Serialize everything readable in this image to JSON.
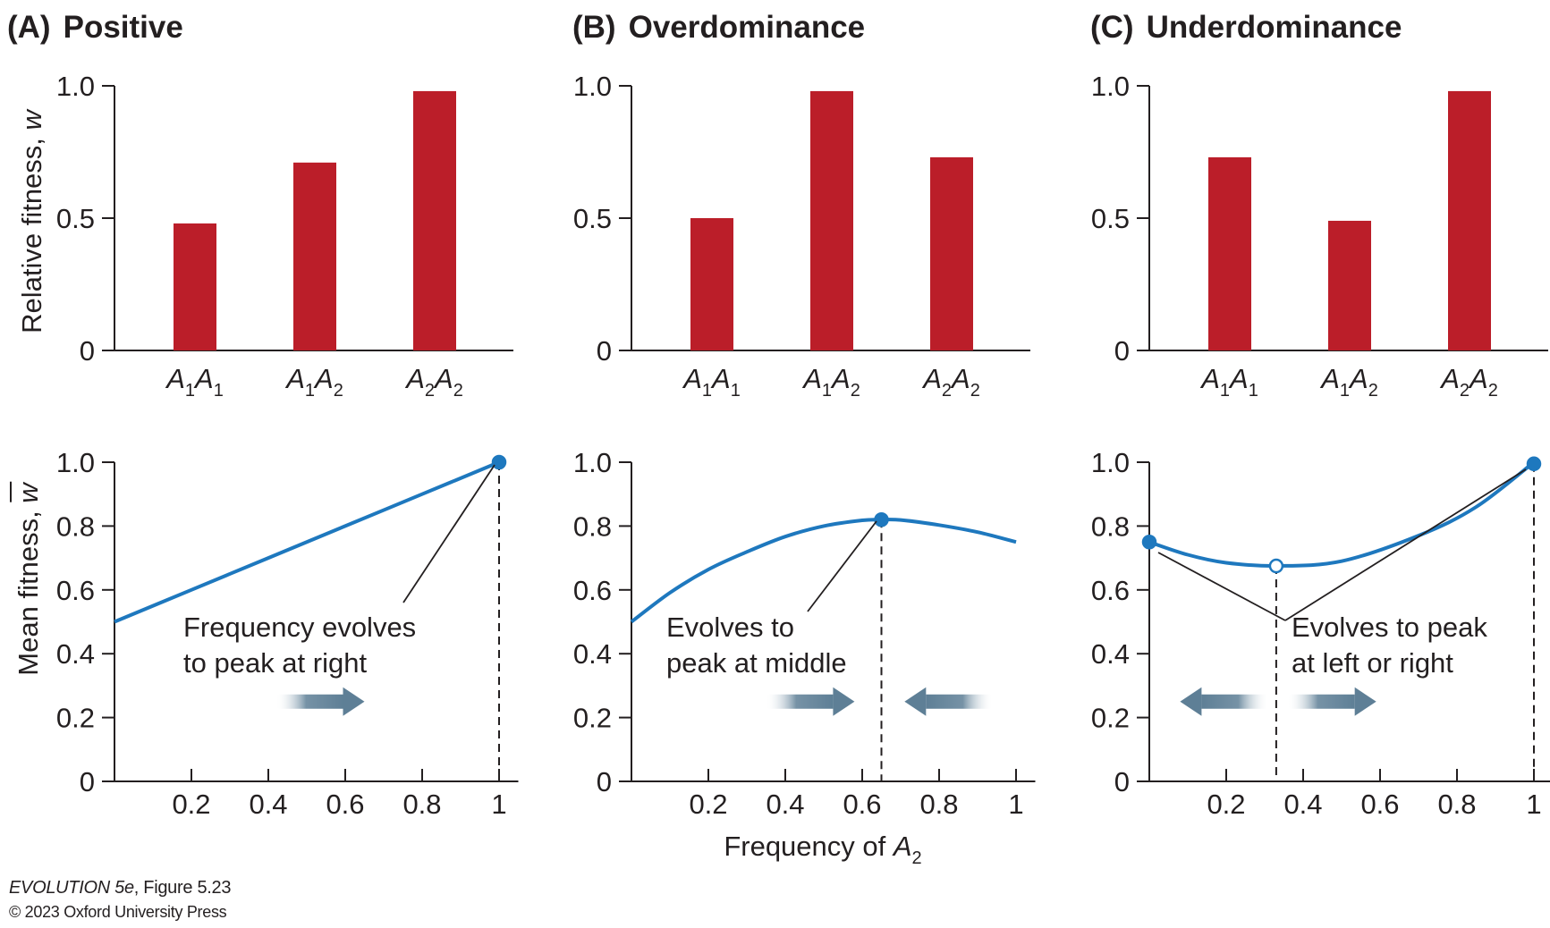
{
  "colors": {
    "bar": "#bb1e29",
    "curve": "#1e78be",
    "arrow": "#5e7f96",
    "axis": "#231f20",
    "open_marker_fill": "#ffffff"
  },
  "panels": [
    {
      "letter": "(A)",
      "title": "Positive"
    },
    {
      "letter": "(B)",
      "title": "Overdominance"
    },
    {
      "letter": "(C)",
      "title": "Underdominance"
    }
  ],
  "labels": {
    "top_ylabel_text": "Relative fitness, ",
    "top_ylabel_sym": "w",
    "bottom_ylabel_text": "Mean fitness, ",
    "bottom_ylabel_sym": "w",
    "xlabel_text": "Frequency of ",
    "xlabel_sym": "A",
    "xlabel_sub": "2",
    "bar_categories": [
      {
        "a": "A",
        "s1": "1",
        "b": "A",
        "s2": "1"
      },
      {
        "a": "A",
        "s1": "1",
        "b": "A",
        "s2": "2"
      },
      {
        "a": "A",
        "s1": "2",
        "b": "A",
        "s2": "2"
      }
    ]
  },
  "annotations": [
    {
      "line1": "Frequency evolves",
      "line2": "to peak at right"
    },
    {
      "line1": "Evolves to",
      "line2": "peak at middle"
    },
    {
      "line1": "Evolves to peak",
      "line2": "at left or right"
    }
  ],
  "credits": {
    "line1_italic": "EVOLUTION 5e",
    "line1_rest": ", Figure 5.23",
    "line2": "© 2023 Oxford University Press"
  },
  "chart_data": [
    {
      "type": "bar",
      "panel": "A",
      "categories": [
        "A1A1",
        "A1A2",
        "A2A2"
      ],
      "values": [
        0.48,
        0.71,
        0.98
      ],
      "ylabel": "Relative fitness, w",
      "ylim": [
        0,
        1.0
      ],
      "yticks": [
        0,
        0.5,
        1.0
      ],
      "ytick_labels": [
        "0",
        "0.5",
        "1.0"
      ]
    },
    {
      "type": "bar",
      "panel": "B",
      "categories": [
        "A1A1",
        "A1A2",
        "A2A2"
      ],
      "values": [
        0.5,
        0.98,
        0.73
      ],
      "ylim": [
        0,
        1.0
      ],
      "yticks": [
        0,
        0.5,
        1.0
      ],
      "ytick_labels": [
        "0",
        "0.5",
        "1.0"
      ]
    },
    {
      "type": "bar",
      "panel": "C",
      "categories": [
        "A1A1",
        "A1A2",
        "A2A2"
      ],
      "values": [
        0.73,
        0.49,
        0.98
      ],
      "ylim": [
        0,
        1.0
      ],
      "yticks": [
        0,
        0.5,
        1.0
      ],
      "ytick_labels": [
        "0",
        "0.5",
        "1.0"
      ]
    },
    {
      "type": "line",
      "panel": "A",
      "x": [
        0,
        0.2,
        0.4,
        0.6,
        0.8,
        1.0
      ],
      "y": [
        0.5,
        0.6,
        0.7,
        0.8,
        0.9,
        1.0
      ],
      "markers": [
        {
          "x": 1.0,
          "y": 1.0,
          "style": "filled"
        }
      ],
      "equilibria_x": [
        1.0
      ],
      "arrows": [
        {
          "x1": 0.42,
          "x2": 0.65,
          "y": 0.25
        }
      ],
      "ylabel": "Mean fitness, w",
      "xlim": [
        0,
        1.05
      ],
      "ylim": [
        0,
        1.0
      ],
      "xticks": [
        0.2,
        0.4,
        0.6,
        0.8,
        1
      ],
      "xtick_labels": [
        "0.2",
        "0.4",
        "0.6",
        "0.8",
        "1"
      ],
      "yticks": [
        0,
        0.2,
        0.4,
        0.6,
        0.8,
        1.0
      ],
      "ytick_labels": [
        "0",
        "0.2",
        "0.4",
        "0.6",
        "0.8",
        "1.0"
      ]
    },
    {
      "type": "line",
      "panel": "B",
      "x": [
        0,
        0.1,
        0.2,
        0.3,
        0.4,
        0.5,
        0.6,
        0.65,
        0.7,
        0.8,
        0.9,
        1.0
      ],
      "y": [
        0.5,
        0.591,
        0.664,
        0.719,
        0.767,
        0.8,
        0.818,
        0.82,
        0.819,
        0.803,
        0.781,
        0.75
      ],
      "markers": [
        {
          "x": 0.65,
          "y": 0.82,
          "style": "filled"
        }
      ],
      "equilibria_x": [
        0.65
      ],
      "arrows": [
        {
          "x1": 0.35,
          "x2": 0.58,
          "y": 0.25
        },
        {
          "x1": 0.94,
          "x2": 0.71,
          "y": 0.25
        }
      ],
      "xlabel": "Frequency of A2",
      "xlim": [
        0,
        1.05
      ],
      "ylim": [
        0,
        1.0
      ],
      "xticks": [
        0.2,
        0.4,
        0.6,
        0.8,
        1
      ],
      "xtick_labels": [
        "0.2",
        "0.4",
        "0.6",
        "0.8",
        "1"
      ],
      "yticks": [
        0,
        0.2,
        0.4,
        0.6,
        0.8,
        1.0
      ],
      "ytick_labels": [
        "0",
        "0.2",
        "0.4",
        "0.6",
        "0.8",
        "1.0"
      ]
    },
    {
      "type": "line",
      "panel": "C",
      "x": [
        0,
        0.1,
        0.2,
        0.33,
        0.5,
        0.7,
        0.85,
        1.0
      ],
      "y": [
        0.75,
        0.71,
        0.685,
        0.675,
        0.69,
        0.77,
        0.86,
        1.0
      ],
      "markers": [
        {
          "x": 0,
          "y": 0.75,
          "style": "filled"
        },
        {
          "x": 0.33,
          "y": 0.675,
          "style": "open"
        },
        {
          "x": 1.0,
          "y": 0.995,
          "style": "filled"
        }
      ],
      "equilibria_x": [
        0.33,
        1.0
      ],
      "arrows": [
        {
          "x1": 0.31,
          "x2": 0.08,
          "y": 0.25
        },
        {
          "x1": 0.36,
          "x2": 0.59,
          "y": 0.25
        }
      ],
      "xlim": [
        0,
        1.05
      ],
      "ylim": [
        0,
        1.0
      ],
      "xticks": [
        0.2,
        0.4,
        0.6,
        0.8,
        1
      ],
      "xtick_labels": [
        "0.2",
        "0.4",
        "0.6",
        "0.8",
        "1"
      ],
      "yticks": [
        0,
        0.2,
        0.4,
        0.6,
        0.8,
        1.0
      ],
      "ytick_labels": [
        "0",
        "0.2",
        "0.4",
        "0.6",
        "0.8",
        "1.0"
      ]
    }
  ]
}
